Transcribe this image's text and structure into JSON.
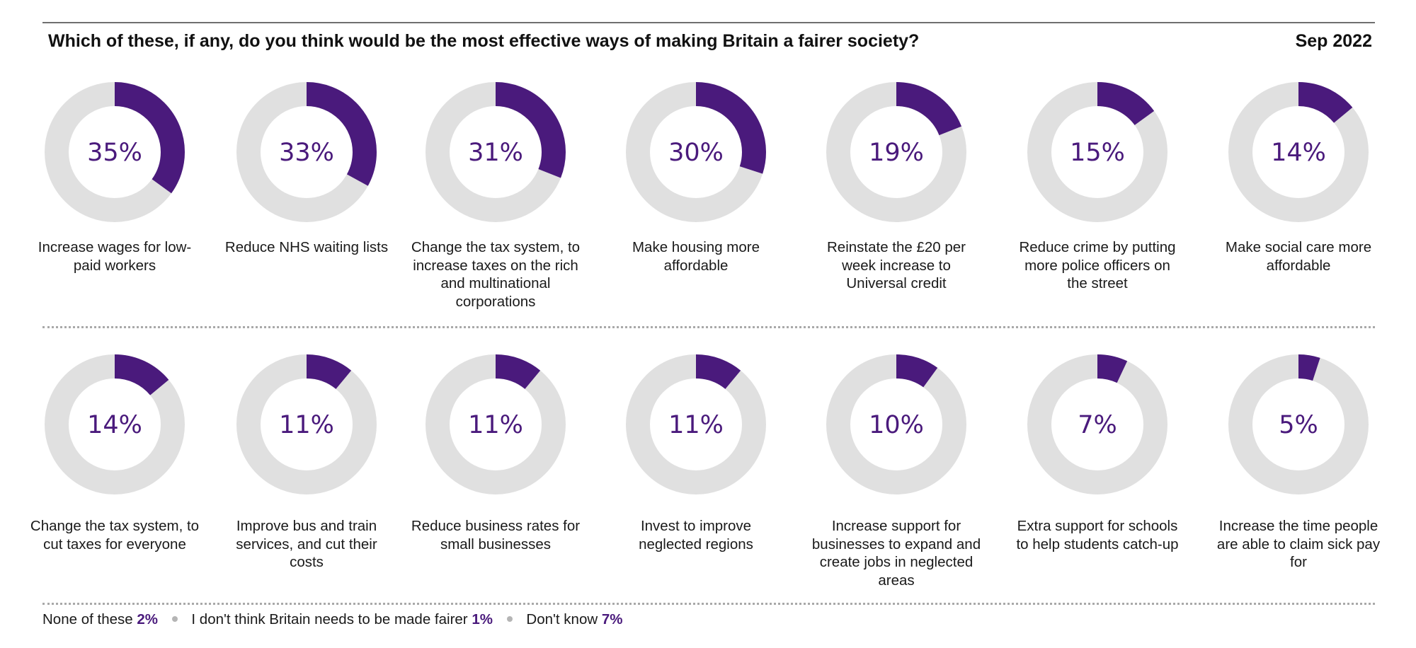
{
  "title": "Which of these, if any, do you think would be the most effective ways of making Britain a fairer society?",
  "date": "Sep 2022",
  "colors": {
    "accent": "#4a1a7c",
    "track": "#e0e0e0"
  },
  "chart_data": {
    "type": "donut",
    "items": [
      {
        "label": "Increase wages for low-paid workers",
        "value": 35,
        "value_label": "35%"
      },
      {
        "label": "Reduce NHS waiting lists",
        "value": 33,
        "value_label": "33%"
      },
      {
        "label": "Change the tax system, to increase taxes on the rich and multinational corporations",
        "value": 31,
        "value_label": "31%"
      },
      {
        "label": "Make housing more affordable",
        "value": 30,
        "value_label": "30%"
      },
      {
        "label": "Reinstate the £20 per week increase to Universal credit",
        "value": 19,
        "value_label": "19%"
      },
      {
        "label": "Reduce crime by putting more police officers on the street",
        "value": 15,
        "value_label": "15%"
      },
      {
        "label": "Make social care more affordable",
        "value": 14,
        "value_label": "14%"
      },
      {
        "label": "Change the tax system, to cut taxes for everyone",
        "value": 14,
        "value_label": "14%"
      },
      {
        "label": "Improve bus and train services, and cut their costs",
        "value": 11,
        "value_label": "11%"
      },
      {
        "label": "Reduce business rates for small businesses",
        "value": 11,
        "value_label": "11%"
      },
      {
        "label": "Invest to improve neglected regions",
        "value": 11,
        "value_label": "11%"
      },
      {
        "label": "Increase support for businesses to expand and create jobs in neglected areas",
        "value": 10,
        "value_label": "10%"
      },
      {
        "label": "Extra support for schools to help students catch-up",
        "value": 7,
        "value_label": "7%"
      },
      {
        "label": "Increase the time people are able to claim sick pay for",
        "value": 5,
        "value_label": "5%"
      }
    ],
    "footer": [
      {
        "label": "None of these",
        "value": 2,
        "value_label": "2%"
      },
      {
        "label": "I don't think Britain needs to be made fairer",
        "value": 1,
        "value_label": "1%"
      },
      {
        "label": "Don't know",
        "value": 7,
        "value_label": "7%"
      }
    ]
  }
}
